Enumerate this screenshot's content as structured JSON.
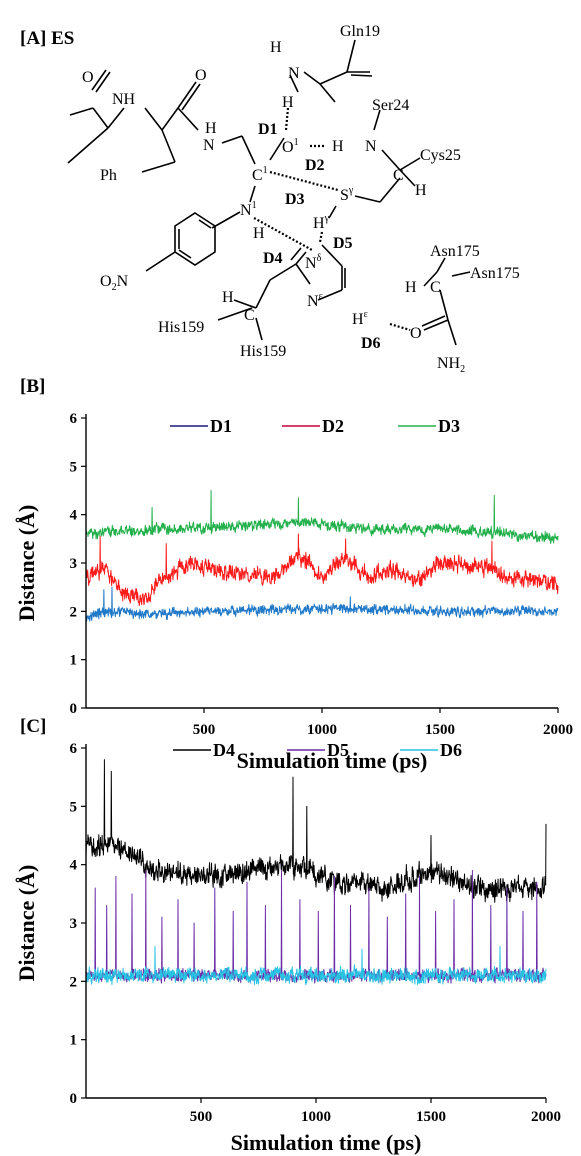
{
  "scheme": {
    "panel_label": "[A] ES",
    "atoms": {
      "gln19": "Gln19",
      "ser24": "Ser24",
      "cys25": "Cys25",
      "asn175_a": "Asn175",
      "asn175_b": "Asn175",
      "his159_a": "His159",
      "his159_b": "His159",
      "ph": "Ph",
      "nh_top": "NH",
      "nh_mid": "H",
      "o_left": "O",
      "o_mid": "O",
      "o_right": "O",
      "no2": "O",
      "nh2": "NH",
      "h_gln": "H",
      "n_gln": "N",
      "h_d1": "H",
      "o1": "O",
      "h_ser": "H",
      "n_ser": "N",
      "c1": "C",
      "s_gamma": "S",
      "h_gamma": "H",
      "n1": "N",
      "h_n1": "H",
      "n_delta": "N",
      "n_eps": "N",
      "h_eps": "H",
      "c_cys": "C",
      "h_cys": "H",
      "c_his": "C",
      "h_his": "H",
      "c_asn": "C",
      "h_asn": "H",
      "n_amide": "N",
      "h_amide": "H"
    },
    "superscripts": {
      "c1": "1",
      "o1": "1",
      "s_gamma": "γ",
      "h_gamma": "γ",
      "n1": "1",
      "n_delta": "δ",
      "n_eps": "ε",
      "h_eps": "ε"
    },
    "subscripts": {
      "no2": "2",
      "nh2": "2",
      "no2_n": "N"
    },
    "distance_labels": [
      "D1",
      "D2",
      "D3",
      "D4",
      "D5",
      "D6"
    ]
  },
  "chart_data": [
    {
      "type": "line",
      "panel_label": "[B]",
      "xlabel": "Simulation time (ps)",
      "ylabel": "Distance (Å)",
      "xlim": [
        0,
        2000
      ],
      "ylim": [
        0,
        6
      ],
      "xticks": [
        500,
        1000,
        1500,
        2000
      ],
      "yticks": [
        0,
        1,
        2,
        3,
        4,
        5,
        6
      ],
      "grid": false,
      "legend": "top, horizontal",
      "series": [
        {
          "name": "D1",
          "color": "#1f78c8",
          "legend_color": "#1a1a7a",
          "profile": [
            [
              0,
              1.9
            ],
            [
              100,
              2.0
            ],
            [
              300,
              1.95
            ],
            [
              600,
              2.0
            ],
            [
              900,
              2.05
            ],
            [
              1200,
              2.05
            ],
            [
              1500,
              2.0
            ],
            [
              2000,
              2.0
            ]
          ],
          "noise": 0.12,
          "spikes": [
            [
              75,
              2.45
            ],
            [
              110,
              2.5
            ],
            [
              1120,
              2.3
            ]
          ]
        },
        {
          "name": "D2",
          "color": "#ff1a1a",
          "legend_color": "#c8003c",
          "profile": [
            [
              0,
              2.7
            ],
            [
              80,
              2.9
            ],
            [
              150,
              2.4
            ],
            [
              250,
              2.25
            ],
            [
              330,
              2.7
            ],
            [
              450,
              3.0
            ],
            [
              600,
              2.8
            ],
            [
              800,
              2.7
            ],
            [
              900,
              3.2
            ],
            [
              1000,
              2.7
            ],
            [
              1100,
              3.1
            ],
            [
              1200,
              2.7
            ],
            [
              1300,
              2.9
            ],
            [
              1400,
              2.6
            ],
            [
              1500,
              3.0
            ],
            [
              1700,
              2.9
            ],
            [
              1800,
              2.7
            ],
            [
              2000,
              2.6
            ]
          ],
          "noise": 0.2,
          "spikes": [
            [
              60,
              3.55
            ],
            [
              340,
              3.4
            ],
            [
              900,
              3.6
            ],
            [
              1100,
              3.5
            ],
            [
              1720,
              3.45
            ]
          ]
        },
        {
          "name": "D3",
          "color": "#22b04b",
          "legend_color": "#22b04b",
          "profile": [
            [
              0,
              3.6
            ],
            [
              300,
              3.7
            ],
            [
              600,
              3.75
            ],
            [
              900,
              3.85
            ],
            [
              1200,
              3.7
            ],
            [
              1500,
              3.7
            ],
            [
              1800,
              3.6
            ],
            [
              2000,
              3.5
            ]
          ],
          "noise": 0.13,
          "spikes": [
            [
              530,
              4.5
            ],
            [
              900,
              4.35
            ],
            [
              1730,
              4.4
            ],
            [
              280,
              4.15
            ]
          ]
        }
      ]
    },
    {
      "type": "line",
      "panel_label": "[C]",
      "xlabel": "Simulation time (ps)",
      "ylabel": "Distance (Å)",
      "xlim": [
        0,
        2000
      ],
      "ylim": [
        0,
        6
      ],
      "xticks": [
        500,
        1000,
        1500,
        2000
      ],
      "yticks": [
        0,
        1,
        2,
        3,
        4,
        5,
        6
      ],
      "grid": false,
      "legend": "top, horizontal",
      "series": [
        {
          "name": "D4",
          "color": "#000000",
          "legend_color": "#000000",
          "profile": [
            [
              0,
              4.3
            ],
            [
              100,
              4.4
            ],
            [
              200,
              4.2
            ],
            [
              300,
              3.9
            ],
            [
              500,
              3.8
            ],
            [
              700,
              3.9
            ],
            [
              900,
              4.0
            ],
            [
              1100,
              3.7
            ],
            [
              1300,
              3.6
            ],
            [
              1500,
              3.9
            ],
            [
              1700,
              3.6
            ],
            [
              2000,
              3.6
            ]
          ],
          "noise": 0.22,
          "spikes": [
            [
              80,
              5.8
            ],
            [
              110,
              5.6
            ],
            [
              900,
              5.5
            ],
            [
              960,
              5.0
            ],
            [
              1500,
              4.5
            ],
            [
              2000,
              4.7
            ]
          ]
        },
        {
          "name": "D5",
          "color": "#6a2ca8",
          "legend_color": "#6a2ca8",
          "profile": [
            [
              0,
              2.1
            ],
            [
              2000,
              2.1
            ]
          ],
          "noise": 0.12,
          "spikes": [
            [
              40,
              3.6
            ],
            [
              90,
              3.3
            ],
            [
              130,
              3.8
            ],
            [
              200,
              3.5
            ],
            [
              260,
              3.9
            ],
            [
              330,
              3.1
            ],
            [
              400,
              3.4
            ],
            [
              470,
              3.0
            ],
            [
              560,
              3.6
            ],
            [
              640,
              3.2
            ],
            [
              700,
              3.7
            ],
            [
              780,
              3.3
            ],
            [
              850,
              3.9
            ],
            [
              930,
              3.4
            ],
            [
              1010,
              3.2
            ],
            [
              1080,
              3.8
            ],
            [
              1150,
              3.3
            ],
            [
              1230,
              3.6
            ],
            [
              1310,
              3.1
            ],
            [
              1390,
              3.5
            ],
            [
              1450,
              3.8
            ],
            [
              1520,
              3.2
            ],
            [
              1600,
              3.4
            ],
            [
              1680,
              3.9
            ],
            [
              1760,
              3.3
            ],
            [
              1830,
              3.6
            ],
            [
              1900,
              3.2
            ],
            [
              1960,
              3.7
            ]
          ]
        },
        {
          "name": "D6",
          "color": "#27c3e3",
          "legend_color": "#27c3e3",
          "profile": [
            [
              0,
              2.1
            ],
            [
              2000,
              2.1
            ]
          ],
          "noise": 0.15,
          "spikes": [
            [
              300,
              2.6
            ],
            [
              1200,
              2.55
            ],
            [
              1800,
              2.6
            ]
          ]
        }
      ]
    }
  ]
}
